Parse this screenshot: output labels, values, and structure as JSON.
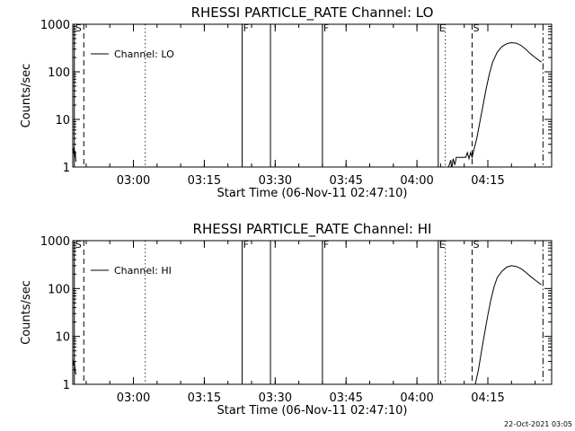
{
  "footer_timestamp": "22-Oct-2021 03:05",
  "chart_data": [
    {
      "type": "line",
      "title": "RHESSI PARTICLE_RATE Channel: LO",
      "xlabel": "Start Time (06-Nov-11 02:47:10)",
      "ylabel": "Counts/sec",
      "y_scale": "log",
      "ylim": [
        1,
        1000
      ],
      "xlim": [
        "02:47:10",
        "04:28:30"
      ],
      "grid": false,
      "legend_position": "top-left",
      "legend": "Channel: LO",
      "x_tick_labels": [
        "03:00",
        "03:15",
        "03:30",
        "03:45",
        "04:00",
        "04:15"
      ],
      "x_ticks_time": [
        "03:00",
        "03:15",
        "03:30",
        "03:45",
        "04:00",
        "04:15"
      ],
      "y_tick_labels": [
        "1",
        "10",
        "100",
        "1000"
      ],
      "y_ticks": [
        1,
        10,
        100,
        1000
      ],
      "markers": [
        {
          "time": "02:47:30",
          "label": "S",
          "style": "solid"
        },
        {
          "time": "02:49:30",
          "label": "",
          "style": "dashed"
        },
        {
          "time": "03:02:30",
          "label": "",
          "style": "dotted"
        },
        {
          "time": "03:23:00",
          "label": "F",
          "style": "solid"
        },
        {
          "time": "03:29:00",
          "label": "",
          "style": "solid"
        },
        {
          "time": "03:40:00",
          "label": "F",
          "style": "solid"
        },
        {
          "time": "04:04:30",
          "label": "E",
          "style": "solid"
        },
        {
          "time": "04:06:00",
          "label": "",
          "style": "dotted"
        },
        {
          "time": "04:11:40",
          "label": "S",
          "style": "dashed"
        },
        {
          "time": "04:26:40",
          "label": "",
          "style": "dashdot"
        }
      ],
      "series": [
        {
          "name": "Channel: LO",
          "segments": [
            {
              "x": [
                "02:47:10",
                "02:47:20",
                "02:47:30",
                "02:47:40",
                "02:47:50"
              ],
              "y": [
                1.8,
                2.5,
                1.6,
                2.2,
                1.3
              ]
            },
            {
              "x": [
                "04:06:40",
                "04:07:10",
                "04:07:20",
                "04:07:40",
                "04:08:00",
                "04:08:20",
                "04:09:00",
                "04:09:40",
                "04:10:20",
                "04:10:40",
                "04:11:00",
                "04:11:20",
                "04:11:40",
                "04:12:00",
                "04:12:40",
                "04:13:20",
                "04:14:00",
                "04:14:40",
                "04:15:20",
                "04:16:00",
                "04:17:00",
                "04:18:00",
                "04:19:00",
                "04:20:00",
                "04:21:00",
                "04:22:00",
                "04:23:00",
                "04:24:00",
                "04:25:00",
                "04:26:20"
              ],
              "y": [
                1.0,
                1.4,
                0.9,
                1.5,
                1.1,
                1.6,
                1.6,
                1.6,
                1.6,
                2.0,
                1.5,
                2.0,
                1.6,
                2.2,
                4,
                9,
                20,
                45,
                90,
                160,
                260,
                340,
                390,
                410,
                400,
                360,
                300,
                240,
                200,
                160
              ]
            }
          ]
        }
      ]
    },
    {
      "type": "line",
      "title": "RHESSI PARTICLE_RATE Channel: HI",
      "xlabel": "Start Time (06-Nov-11 02:47:10)",
      "ylabel": "Counts/sec",
      "y_scale": "log",
      "ylim": [
        1,
        1000
      ],
      "xlim": [
        "02:47:10",
        "04:28:30"
      ],
      "grid": false,
      "legend_position": "top-left",
      "legend": "Channel: HI",
      "x_tick_labels": [
        "03:00",
        "03:15",
        "03:30",
        "03:45",
        "04:00",
        "04:15"
      ],
      "x_ticks_time": [
        "03:00",
        "03:15",
        "03:30",
        "03:45",
        "04:00",
        "04:15"
      ],
      "y_tick_labels": [
        "1",
        "10",
        "100",
        "1000"
      ],
      "y_ticks": [
        1,
        10,
        100,
        1000
      ],
      "markers": [
        {
          "time": "02:47:30",
          "label": "S",
          "style": "solid"
        },
        {
          "time": "02:49:30",
          "label": "",
          "style": "dashed"
        },
        {
          "time": "03:02:30",
          "label": "",
          "style": "dotted"
        },
        {
          "time": "03:23:00",
          "label": "F",
          "style": "solid"
        },
        {
          "time": "03:29:00",
          "label": "",
          "style": "solid"
        },
        {
          "time": "03:40:00",
          "label": "F",
          "style": "solid"
        },
        {
          "time": "04:04:30",
          "label": "E",
          "style": "solid"
        },
        {
          "time": "04:06:00",
          "label": "",
          "style": "dotted"
        },
        {
          "time": "04:11:40",
          "label": "S",
          "style": "dashed"
        },
        {
          "time": "04:26:40",
          "label": "",
          "style": "dashdot"
        }
      ],
      "series": [
        {
          "name": "Channel: HI",
          "segments": [
            {
              "x": [
                "02:47:10",
                "02:47:20",
                "02:47:30",
                "02:47:40",
                "02:47:50"
              ],
              "y": [
                3.5,
                2.5,
                3.0,
                2.0,
                1.6
              ]
            },
            {
              "x": [
                "04:12:20",
                "04:13:00",
                "04:13:40",
                "04:14:20",
                "04:15:00",
                "04:15:40",
                "04:16:20",
                "04:17:00",
                "04:18:00",
                "04:19:00",
                "04:20:00",
                "04:21:00",
                "04:22:00",
                "04:23:00",
                "04:24:00",
                "04:25:00",
                "04:26:20"
              ],
              "y": [
                1.0,
                2.0,
                5,
                12,
                28,
                60,
                110,
                170,
                230,
                280,
                300,
                290,
                260,
                220,
                180,
                150,
                120
              ]
            }
          ]
        }
      ]
    }
  ]
}
